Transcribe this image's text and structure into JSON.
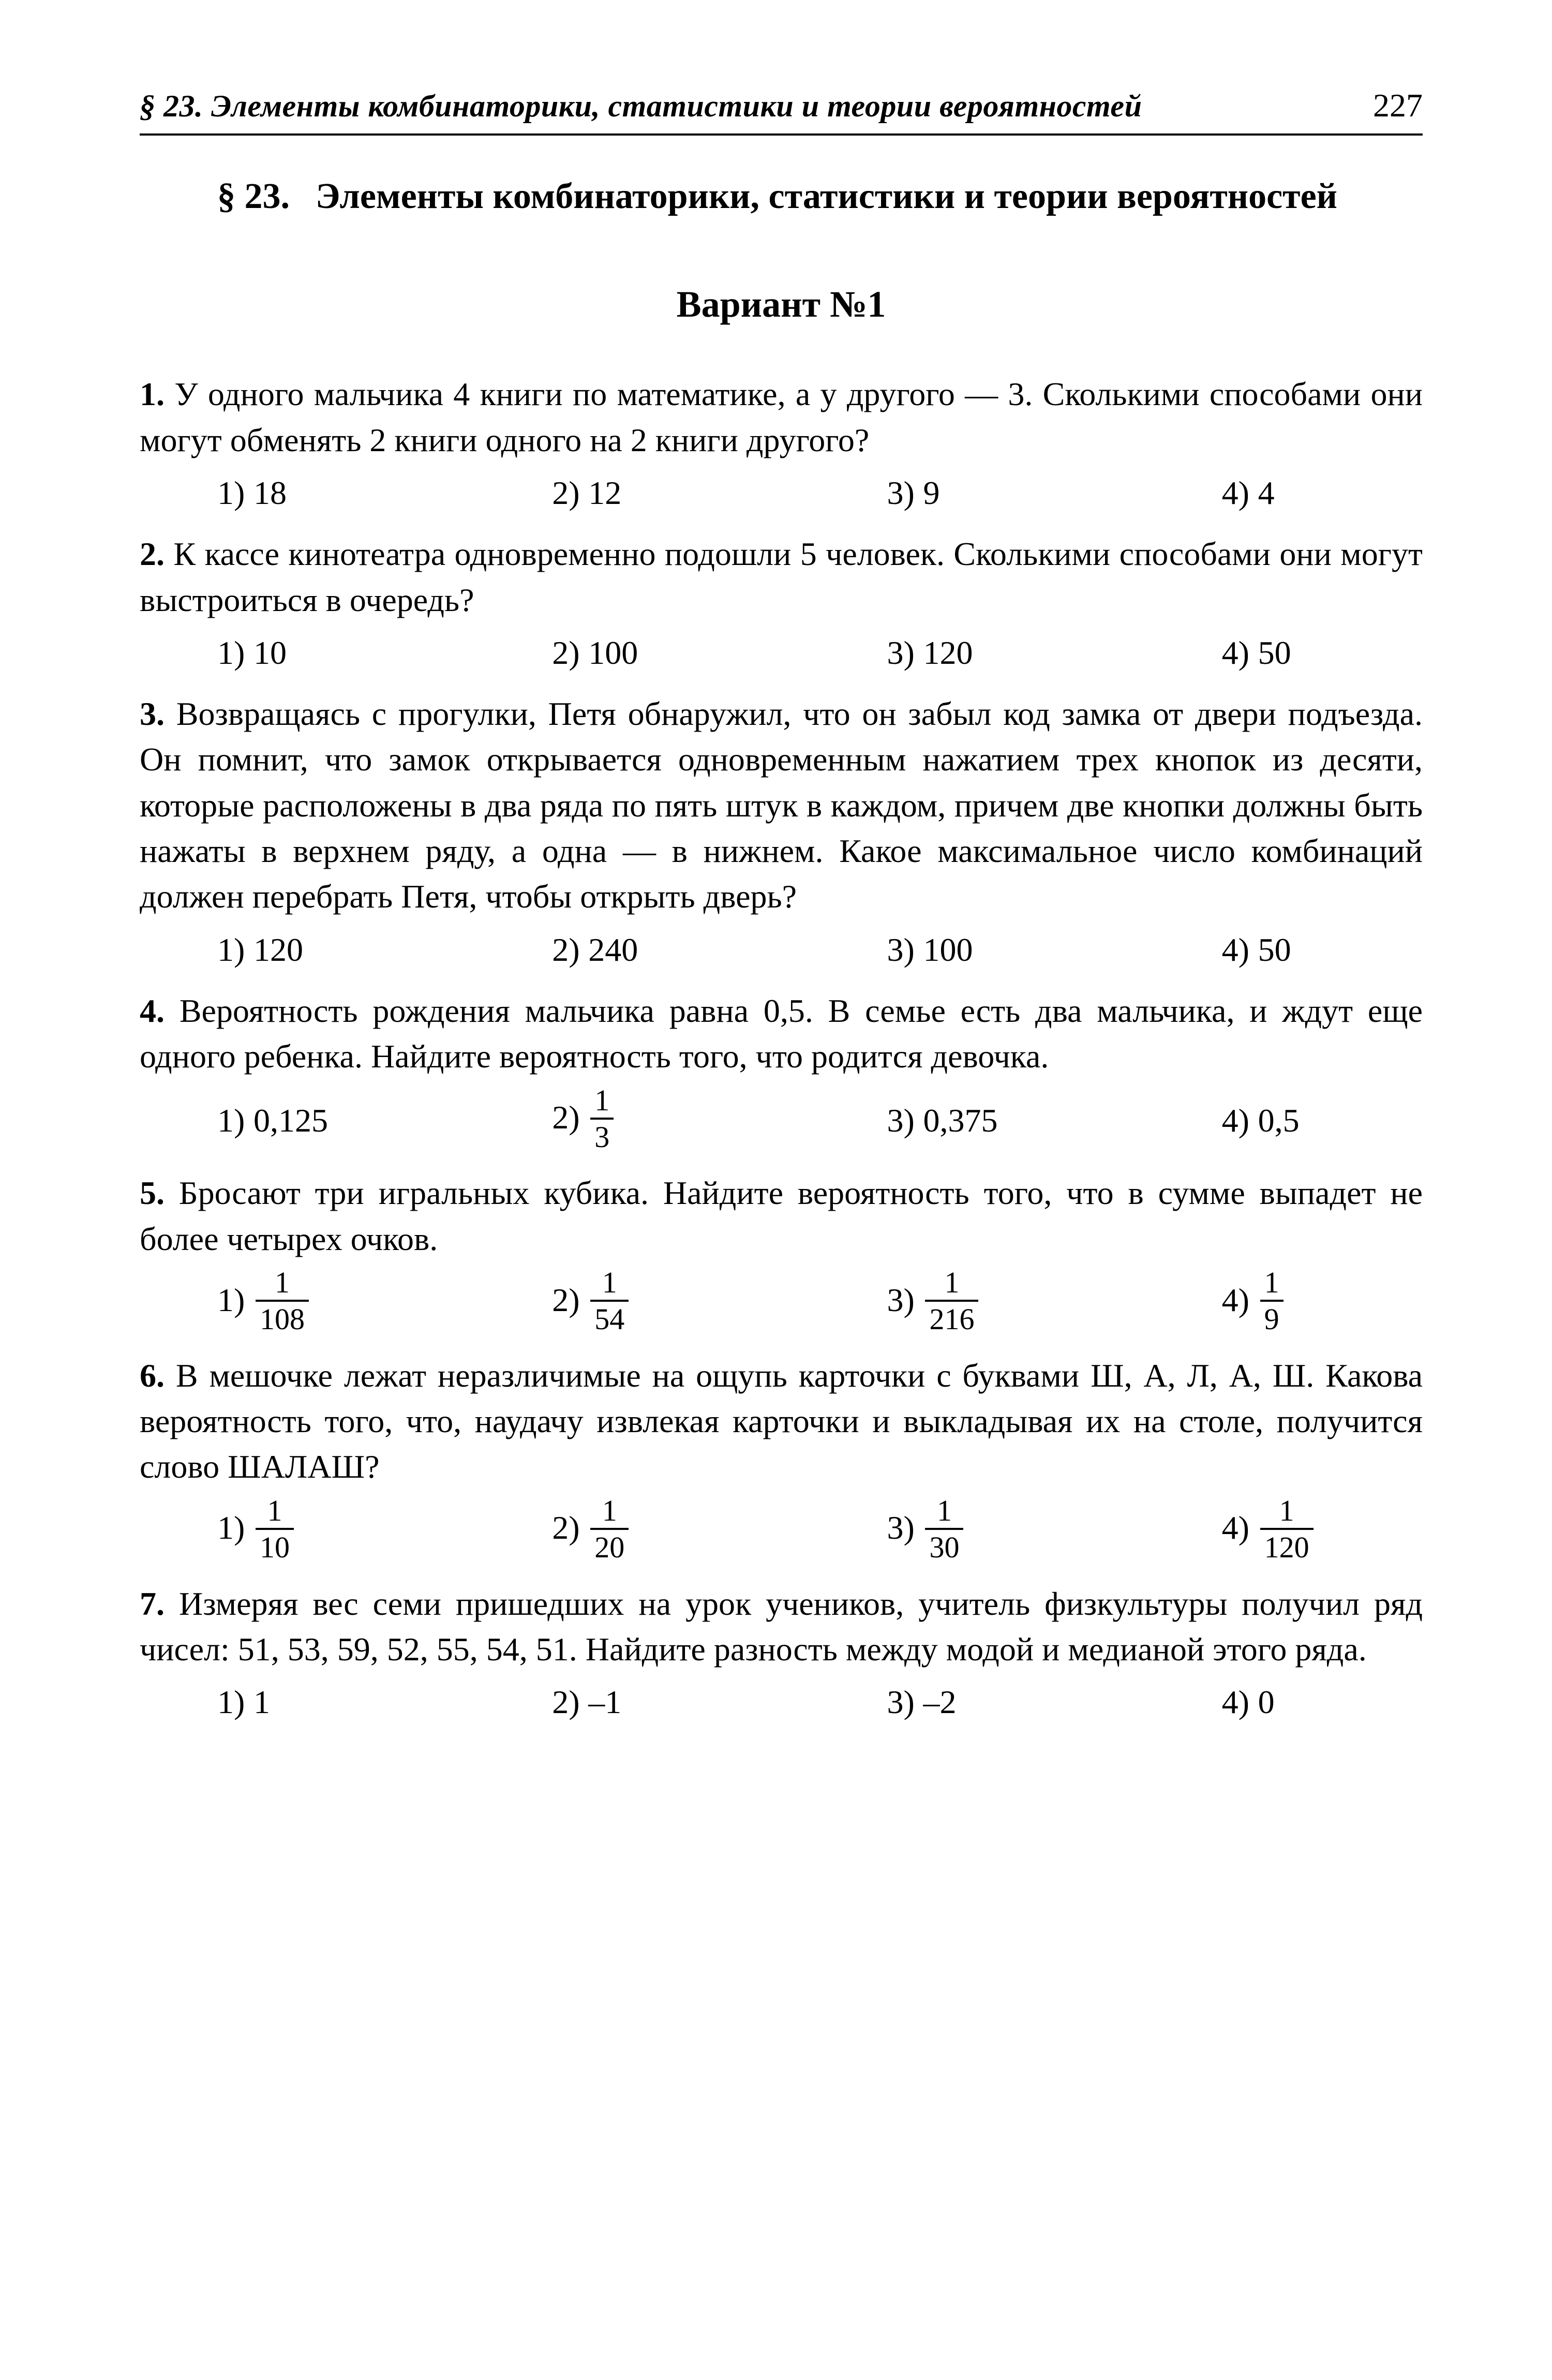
{
  "header": {
    "running": "§ 23. Элементы комбинаторики, статистики и теории вероятностей",
    "page": "227"
  },
  "section": {
    "num": "§ 23.",
    "title": "Элементы комбинаторики, статистики и теории вероятностей"
  },
  "variant": "Вариант №1",
  "problems": [
    {
      "num": "1.",
      "text": "У одного мальчика 4 книги по математике, а у другого — 3. Сколькими способами они могут обменять 2 книги одного на 2 книги другого?",
      "options": [
        {
          "label": "1)",
          "val": "18"
        },
        {
          "label": "2)",
          "val": "12"
        },
        {
          "label": "3)",
          "val": "9"
        },
        {
          "label": "4)",
          "val": "4"
        }
      ]
    },
    {
      "num": "2.",
      "text": "К кассе кинотеатра одновременно подошли 5 человек. Сколькими способами они могут выстроиться в очередь?",
      "options": [
        {
          "label": "1)",
          "val": "10"
        },
        {
          "label": "2)",
          "val": "100"
        },
        {
          "label": "3)",
          "val": "120"
        },
        {
          "label": "4)",
          "val": "50"
        }
      ]
    },
    {
      "num": "3.",
      "text": "Возвращаясь с прогулки, Петя обнаружил, что он забыл код замка от двери подъезда. Он помнит, что замок открывается одновременным нажатием трех кнопок из десяти, которые расположены в два ряда по пять штук в каждом, причем две кнопки должны быть нажаты в верхнем ряду, а одна — в нижнем. Какое максимальное число комбинаций должен перебрать Петя, чтобы открыть дверь?",
      "options": [
        {
          "label": "1)",
          "val": "120"
        },
        {
          "label": "2)",
          "val": "240"
        },
        {
          "label": "3)",
          "val": "100"
        },
        {
          "label": "4)",
          "val": "50"
        }
      ]
    },
    {
      "num": "4.",
      "text": "Вероятность рождения мальчика равна 0,5. В семье есть два мальчика, и ждут еще одного ребенка. Найдите вероятность того, что родится девочка.",
      "options": [
        {
          "label": "1)",
          "val": "0,125"
        },
        {
          "label": "2)",
          "frac": {
            "n": "1",
            "d": "3"
          }
        },
        {
          "label": "3)",
          "val": "0,375"
        },
        {
          "label": "4)",
          "val": "0,5"
        }
      ]
    },
    {
      "num": "5.",
      "text": "Бросают три игральных кубика. Найдите вероятность того, что в сумме выпадет не более четырех очков.",
      "options": [
        {
          "label": "1)",
          "frac": {
            "n": "1",
            "d": "108"
          }
        },
        {
          "label": "2)",
          "frac": {
            "n": "1",
            "d": "54"
          }
        },
        {
          "label": "3)",
          "frac": {
            "n": "1",
            "d": "216"
          }
        },
        {
          "label": "4)",
          "frac": {
            "n": "1",
            "d": "9"
          }
        }
      ]
    },
    {
      "num": "6.",
      "text": "В мешочке лежат неразличимые на ощупь карточки с буквами Ш, А, Л, А, Ш. Какова вероятность того, что, наудачу извлекая карточки и выкладывая их на столе, получится слово ШАЛАШ?",
      "options": [
        {
          "label": "1)",
          "frac": {
            "n": "1",
            "d": "10"
          }
        },
        {
          "label": "2)",
          "frac": {
            "n": "1",
            "d": "20"
          }
        },
        {
          "label": "3)",
          "frac": {
            "n": "1",
            "d": "30"
          }
        },
        {
          "label": "4)",
          "frac": {
            "n": "1",
            "d": "120"
          }
        }
      ]
    },
    {
      "num": "7.",
      "text": "Измеряя вес семи пришедших на урок учеников, учитель физкультуры получил ряд чисел: 51, 53, 59, 52, 55, 54, 51. Найдите разность между модой и медианой этого ряда.",
      "options": [
        {
          "label": "1)",
          "val": "1"
        },
        {
          "label": "2)",
          "val": "–1"
        },
        {
          "label": "3)",
          "val": "–2"
        },
        {
          "label": "4)",
          "val": "0"
        }
      ]
    }
  ]
}
